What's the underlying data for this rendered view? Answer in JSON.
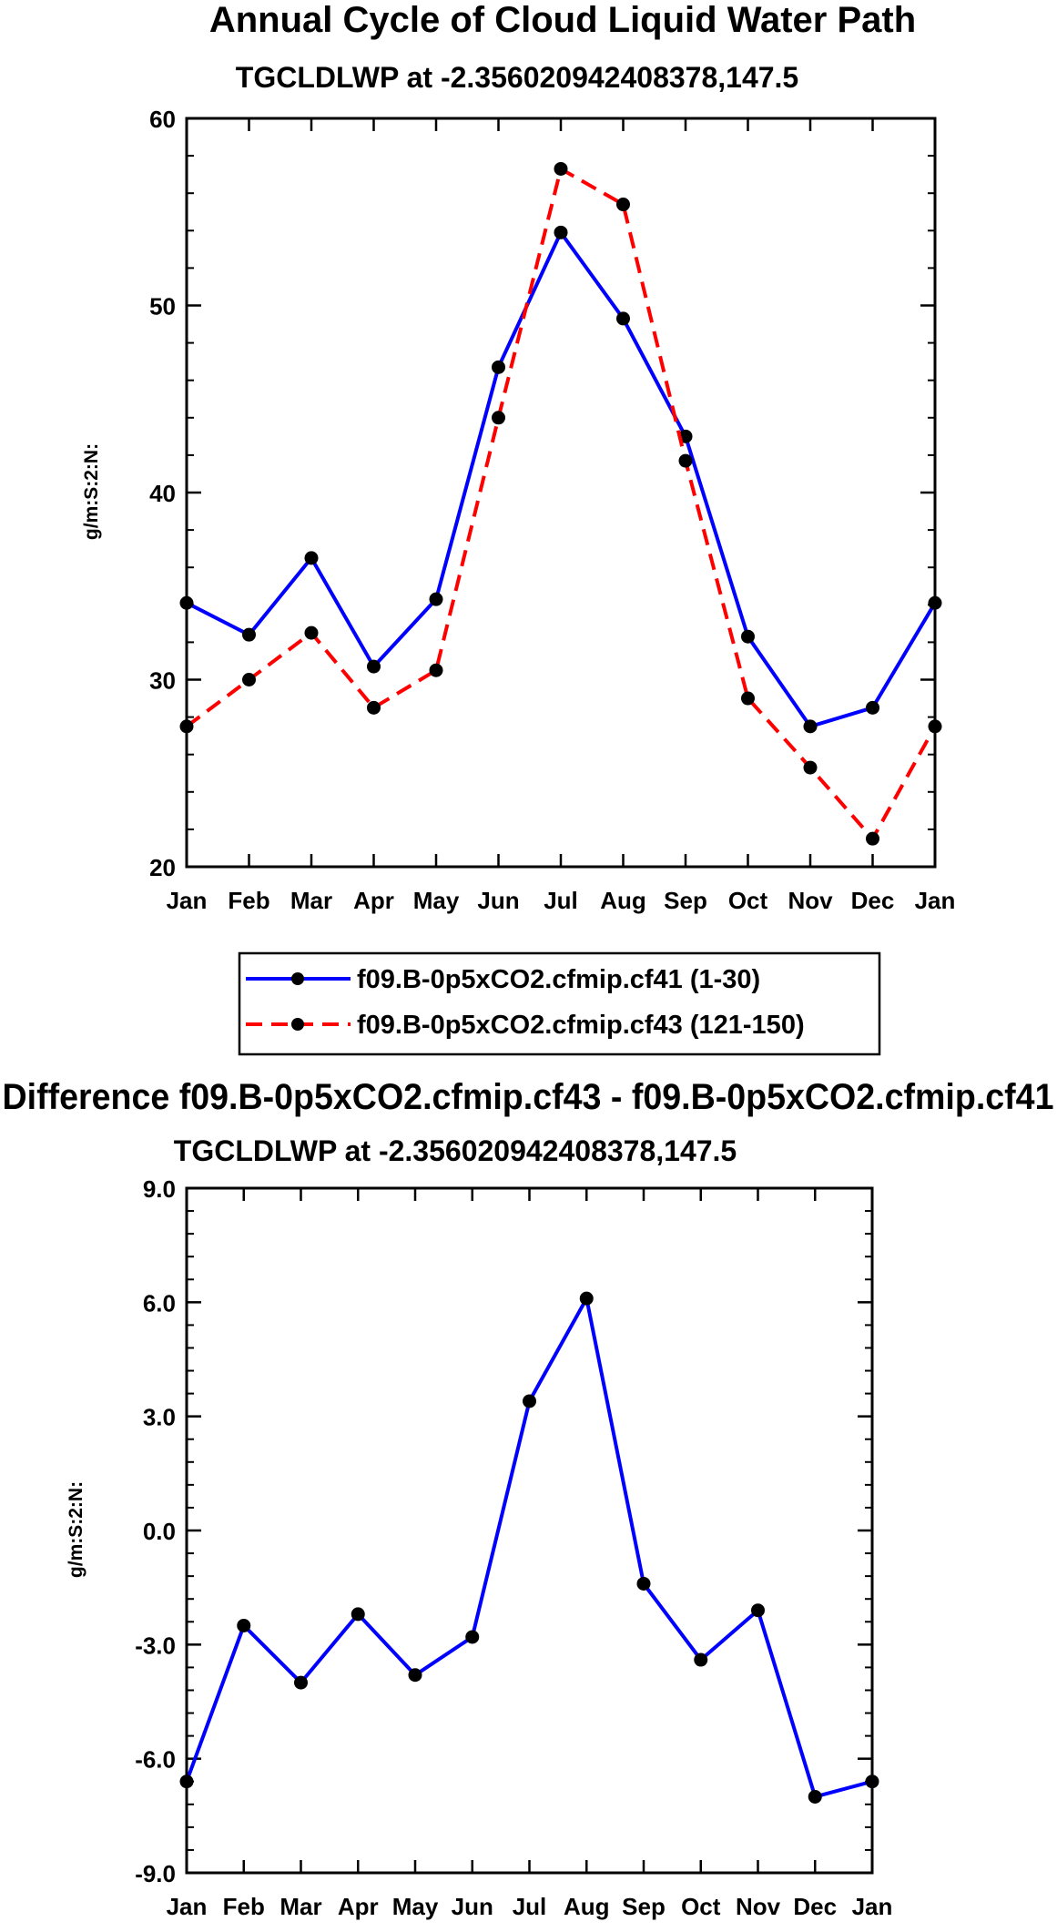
{
  "chart_data": [
    {
      "type": "line",
      "title": "Annual Cycle of Cloud Liquid Water Path",
      "subtitle": "TGCLDLWP at -2.356020942408378,147.5",
      "xlabel": "",
      "ylabel": "g/m:S:2:N:",
      "categories": [
        "Jan",
        "Feb",
        "Mar",
        "Apr",
        "May",
        "Jun",
        "Jul",
        "Aug",
        "Sep",
        "Oct",
        "Nov",
        "Dec",
        "Jan"
      ],
      "ylim": [
        20,
        60
      ],
      "yticks": [
        "20",
        "30",
        "40",
        "50",
        "60"
      ],
      "yticks_values": [
        20,
        30,
        40,
        50,
        60
      ],
      "series": [
        {
          "name": "f09.B-0p5xCO2.cfmip.cf41 (1-30)",
          "color": "#0000ff",
          "dash": "solid",
          "values": [
            34.1,
            32.4,
            36.5,
            30.7,
            34.3,
            46.7,
            53.9,
            49.3,
            43.0,
            32.3,
            27.5,
            28.5,
            34.1
          ]
        },
        {
          "name": "f09.B-0p5xCO2.cfmip.cf43 (121-150)",
          "color": "#ff0000",
          "dash": "dashed",
          "values": [
            27.5,
            30.0,
            32.5,
            28.5,
            30.5,
            44.0,
            57.3,
            55.4,
            41.7,
            29.0,
            25.3,
            21.5,
            27.5
          ]
        }
      ],
      "legend": "bottom"
    },
    {
      "type": "line",
      "title": "Difference f09.B-0p5xCO2.cfmip.cf43 - f09.B-0p5xCO2.cfmip.cf41",
      "subtitle": "TGCLDLWP at -2.356020942408378,147.5",
      "xlabel": "",
      "ylabel": "g/m:S:2:N:",
      "categories": [
        "Jan",
        "Feb",
        "Mar",
        "Apr",
        "May",
        "Jun",
        "Jul",
        "Aug",
        "Sep",
        "Oct",
        "Nov",
        "Dec",
        "Jan"
      ],
      "ylim": [
        -9.0,
        9.0
      ],
      "yticks": [
        "-9.0",
        "-6.0",
        "-3.0",
        "0.0",
        "3.0",
        "6.0",
        "9.0"
      ],
      "yticks_values": [
        -9,
        -6,
        -3,
        0,
        3,
        6,
        9
      ],
      "series": [
        {
          "name": "difference",
          "color": "#0000ff",
          "dash": "solid",
          "values": [
            -6.6,
            -2.5,
            -4.0,
            -2.2,
            -3.8,
            -2.8,
            3.4,
            6.1,
            -1.4,
            -3.4,
            -2.1,
            -7.0,
            -6.6
          ]
        }
      ]
    }
  ]
}
